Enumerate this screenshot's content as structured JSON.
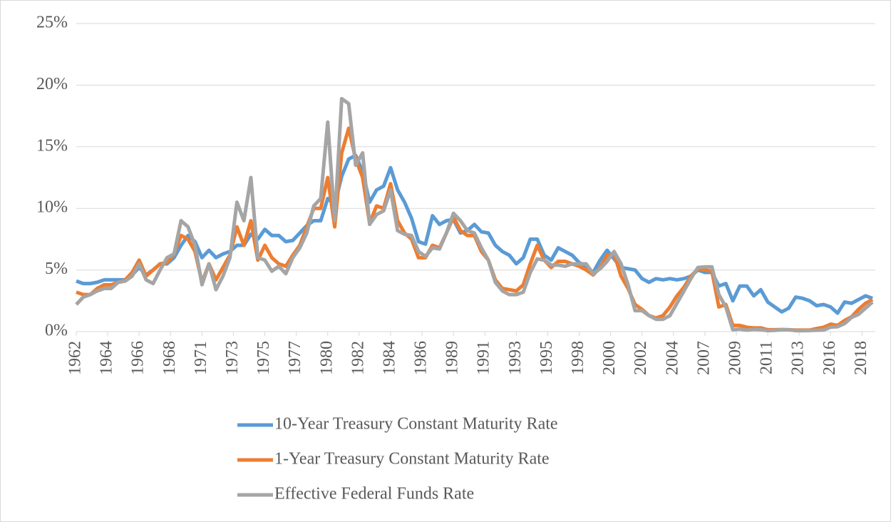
{
  "chart_data": {
    "type": "line",
    "x": [
      1962,
      1962.5,
      1963,
      1963.5,
      1964,
      1964.5,
      1965,
      1965.5,
      1966,
      1966.5,
      1967,
      1967.5,
      1968,
      1968.5,
      1969,
      1969.5,
      1970,
      1970.5,
      1971,
      1971.5,
      1972,
      1972.5,
      1973,
      1973.5,
      1974,
      1974.5,
      1975,
      1975.5,
      1976,
      1976.5,
      1977,
      1977.5,
      1978,
      1978.5,
      1979,
      1979.5,
      1980,
      1980.5,
      1981,
      1981.5,
      1982,
      1982.5,
      1983,
      1983.5,
      1984,
      1984.5,
      1985,
      1985.5,
      1986,
      1986.5,
      1987,
      1987.5,
      1988,
      1988.5,
      1989,
      1989.5,
      1990,
      1990.5,
      1991,
      1991.5,
      1992,
      1992.5,
      1993,
      1993.5,
      1994,
      1994.5,
      1995,
      1995.5,
      1996,
      1996.5,
      1997,
      1997.5,
      1998,
      1998.5,
      1999,
      1999.5,
      2000,
      2000.5,
      2001,
      2001.5,
      2002,
      2002.5,
      2003,
      2003.5,
      2004,
      2004.5,
      2005,
      2005.5,
      2006,
      2006.5,
      2007,
      2007.5,
      2008,
      2008.5,
      2009,
      2009.5,
      2010,
      2010.5,
      2011,
      2011.5,
      2012,
      2012.5,
      2013,
      2013.5,
      2014,
      2014.5,
      2015,
      2015.5,
      2016,
      2016.5,
      2017,
      2017.5,
      2018,
      2018.5,
      2019
    ],
    "series": [
      {
        "name": "10-Year Treasury Constant Maturity Rate",
        "color": "#5b9bd5",
        "values": [
          4.1,
          3.9,
          3.9,
          4.0,
          4.2,
          4.2,
          4.2,
          4.2,
          4.6,
          5.2,
          4.6,
          5.0,
          5.5,
          5.5,
          6.0,
          7.0,
          7.8,
          7.3,
          6.0,
          6.6,
          6.0,
          6.3,
          6.5,
          7.0,
          7.0,
          7.9,
          7.5,
          8.3,
          7.8,
          7.8,
          7.3,
          7.4,
          8.0,
          8.6,
          9.0,
          9.0,
          10.8,
          10.3,
          12.6,
          14.0,
          14.3,
          13.0,
          10.5,
          11.5,
          11.8,
          13.3,
          11.5,
          10.5,
          9.2,
          7.3,
          7.1,
          9.4,
          8.7,
          9.0,
          9.1,
          8.0,
          8.2,
          8.7,
          8.1,
          8.0,
          7.0,
          6.5,
          6.2,
          5.5,
          6.0,
          7.5,
          7.5,
          6.2,
          5.8,
          6.8,
          6.5,
          6.2,
          5.6,
          5.3,
          4.8,
          5.8,
          6.6,
          5.9,
          5.2,
          5.1,
          5.0,
          4.3,
          4.0,
          4.3,
          4.2,
          4.3,
          4.2,
          4.3,
          4.5,
          5.0,
          4.8,
          4.8,
          3.7,
          3.9,
          2.5,
          3.7,
          3.7,
          2.9,
          3.4,
          2.4,
          2.0,
          1.6,
          1.9,
          2.8,
          2.7,
          2.5,
          2.1,
          2.2,
          2.0,
          1.5,
          2.4,
          2.3,
          2.6,
          2.9,
          2.7
        ]
      },
      {
        "name": "1-Year Treasury Constant Maturity Rate",
        "color": "#ed7d31",
        "values": [
          3.2,
          3.0,
          3.0,
          3.5,
          3.8,
          3.8,
          4.0,
          4.2,
          4.8,
          5.8,
          4.5,
          5.0,
          5.5,
          5.6,
          6.3,
          7.8,
          7.5,
          6.5,
          4.0,
          5.5,
          4.2,
          5.2,
          6.2,
          8.5,
          7.0,
          9.0,
          5.8,
          7.0,
          6.0,
          5.5,
          5.3,
          6.2,
          7.0,
          8.5,
          10.0,
          10.0,
          12.5,
          8.5,
          14.5,
          16.5,
          14.0,
          12.5,
          8.8,
          10.2,
          10.0,
          12.0,
          9.0,
          8.0,
          7.5,
          6.0,
          6.0,
          7.0,
          6.8,
          8.0,
          9.3,
          8.2,
          7.8,
          7.8,
          6.5,
          5.8,
          4.2,
          3.5,
          3.4,
          3.3,
          3.8,
          5.5,
          7.0,
          5.8,
          5.2,
          5.7,
          5.7,
          5.5,
          5.3,
          5.0,
          4.6,
          5.2,
          6.2,
          6.3,
          4.5,
          3.5,
          2.2,
          1.8,
          1.3,
          1.1,
          1.3,
          2.0,
          2.9,
          3.6,
          4.5,
          5.1,
          5.0,
          4.9,
          2.0,
          2.2,
          0.5,
          0.5,
          0.35,
          0.3,
          0.3,
          0.15,
          0.15,
          0.17,
          0.15,
          0.12,
          0.12,
          0.12,
          0.25,
          0.35,
          0.6,
          0.5,
          0.9,
          1.2,
          1.8,
          2.3,
          2.6
        ]
      },
      {
        "name": "Effective Federal Funds Rate",
        "color": "#a5a5a5",
        "values": [
          2.2,
          2.8,
          3.0,
          3.3,
          3.5,
          3.5,
          4.0,
          4.1,
          4.5,
          5.5,
          4.2,
          3.9,
          5.0,
          6.0,
          6.3,
          9.0,
          8.5,
          7.0,
          3.8,
          5.5,
          3.4,
          4.5,
          6.0,
          10.5,
          9.0,
          12.5,
          6.0,
          5.8,
          4.9,
          5.3,
          4.7,
          6.0,
          6.8,
          8.0,
          10.2,
          10.8,
          17.0,
          9.0,
          18.9,
          18.5,
          13.5,
          14.5,
          8.7,
          9.5,
          9.8,
          11.5,
          8.2,
          7.9,
          7.8,
          6.5,
          6.1,
          6.8,
          6.7,
          8.0,
          9.6,
          9.0,
          8.2,
          8.0,
          6.8,
          5.8,
          4.0,
          3.3,
          3.0,
          3.0,
          3.2,
          4.8,
          5.9,
          5.8,
          5.4,
          5.4,
          5.3,
          5.5,
          5.5,
          5.5,
          4.7,
          5.1,
          5.7,
          6.5,
          5.5,
          3.8,
          1.7,
          1.7,
          1.3,
          1.0,
          1.0,
          1.3,
          2.3,
          3.3,
          4.3,
          5.2,
          5.25,
          5.25,
          3.0,
          2.0,
          0.15,
          0.2,
          0.12,
          0.18,
          0.15,
          0.08,
          0.1,
          0.15,
          0.15,
          0.08,
          0.07,
          0.09,
          0.11,
          0.13,
          0.36,
          0.4,
          0.65,
          1.15,
          1.4,
          1.9,
          2.4
        ]
      }
    ],
    "xlim": [
      1962,
      2019.2
    ],
    "xticks": [
      {
        "value": 1962,
        "label": "1962"
      },
      {
        "value": 1964.25,
        "label": "1964"
      },
      {
        "value": 1966.5,
        "label": "1966"
      },
      {
        "value": 1968.75,
        "label": "1968"
      },
      {
        "value": 1971,
        "label": "1971"
      },
      {
        "value": 1973.25,
        "label": "1973"
      },
      {
        "value": 1975.5,
        "label": "1975"
      },
      {
        "value": 1977.75,
        "label": "1977"
      },
      {
        "value": 1980,
        "label": "1980"
      },
      {
        "value": 1982.25,
        "label": "1982"
      },
      {
        "value": 1984.5,
        "label": "1984"
      },
      {
        "value": 1986.75,
        "label": "1986"
      },
      {
        "value": 1989,
        "label": "1989"
      },
      {
        "value": 1991.25,
        "label": "1991"
      },
      {
        "value": 1993.5,
        "label": "1993"
      },
      {
        "value": 1995.75,
        "label": "1995"
      },
      {
        "value": 1998,
        "label": "1998"
      },
      {
        "value": 2000.25,
        "label": "2000"
      },
      {
        "value": 2002.5,
        "label": "2002"
      },
      {
        "value": 2004.75,
        "label": "2004"
      },
      {
        "value": 2007,
        "label": "2007"
      },
      {
        "value": 2009.25,
        "label": "2009"
      },
      {
        "value": 2011.5,
        "label": "2011"
      },
      {
        "value": 2013.75,
        "label": "2013"
      },
      {
        "value": 2016,
        "label": "2016"
      },
      {
        "value": 2018.25,
        "label": "2018"
      }
    ],
    "ylim": [
      0,
      25
    ],
    "yticks": [
      {
        "value": 0,
        "label": "0%"
      },
      {
        "value": 5,
        "label": "5%"
      },
      {
        "value": 10,
        "label": "10%"
      },
      {
        "value": 15,
        "label": "15%"
      },
      {
        "value": 20,
        "label": "20%"
      },
      {
        "value": 25,
        "label": "25%"
      }
    ],
    "grid": true,
    "legend": "bottom"
  }
}
